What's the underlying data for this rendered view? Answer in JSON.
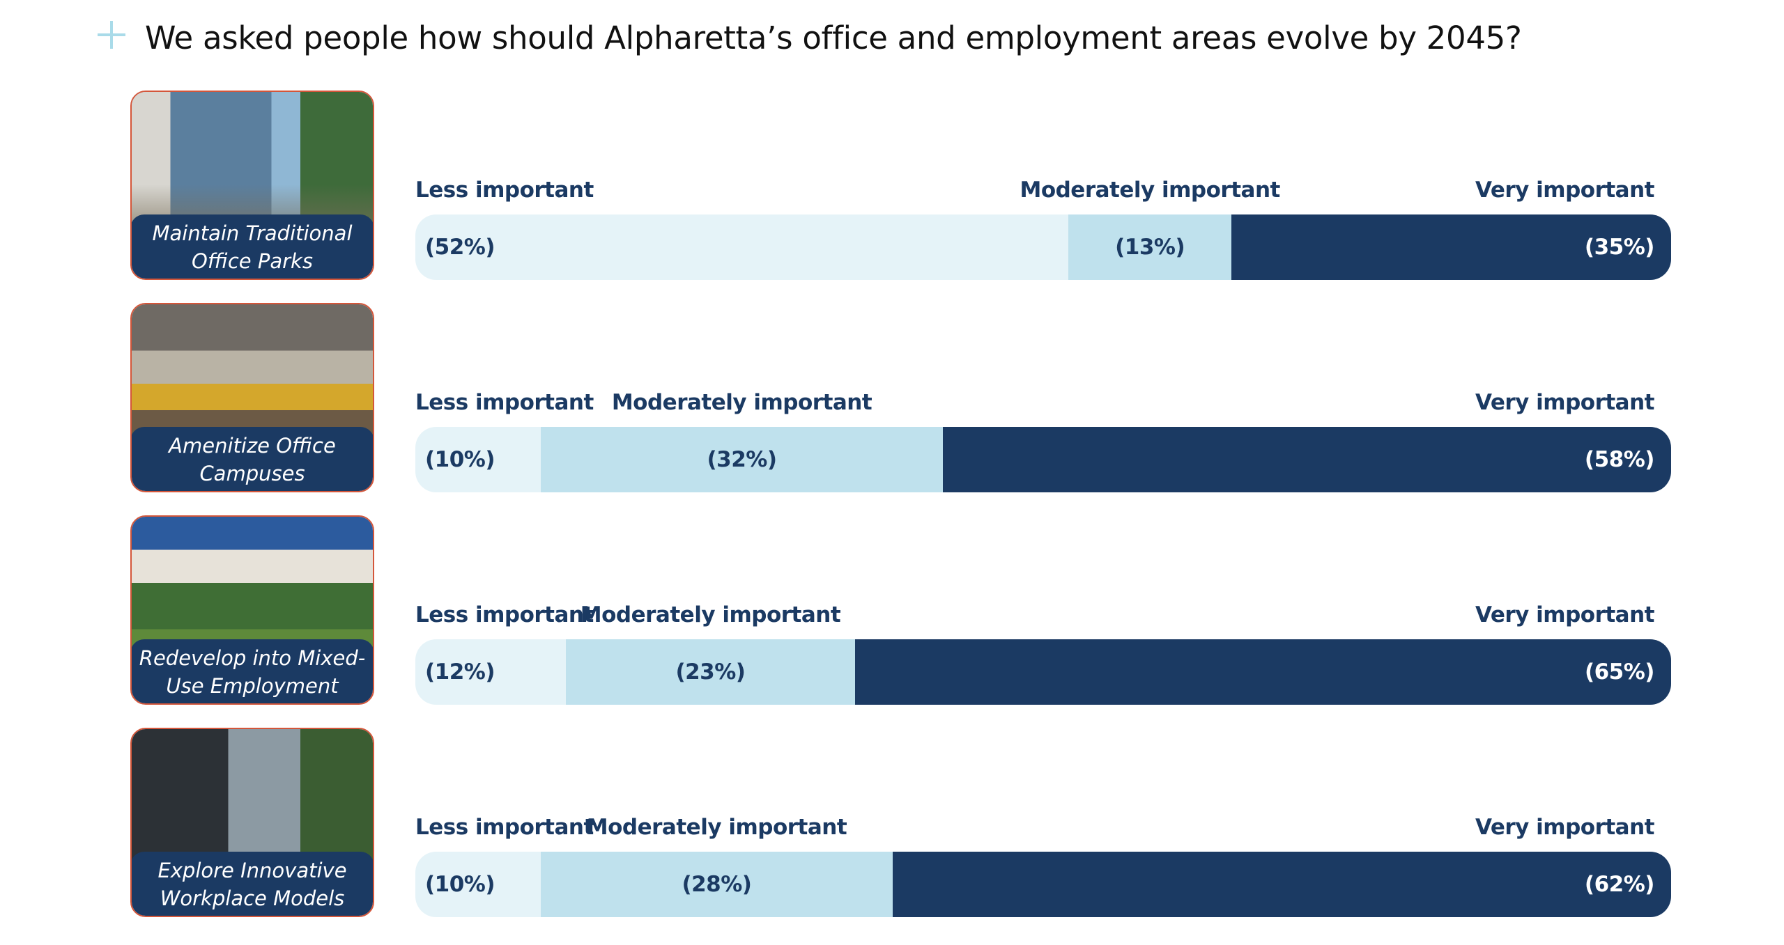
{
  "header": {
    "icon": "plus-icon",
    "title": "We asked people how should Alpharetta’s office and employment areas evolve by 2045?"
  },
  "colors": {
    "less": "#e5f3f8",
    "moderate": "#bfe1ed",
    "very": "#1b3a63",
    "accent_plus": "#a9dbe9",
    "card_border": "#d4563a",
    "caption_bg": "#1b3a63"
  },
  "scale_labels": {
    "less": "Less important",
    "moderate": "Moderately  important",
    "very": "Very important"
  },
  "chart_data": {
    "type": "bar",
    "orientation": "horizontal",
    "stacked": true,
    "title": "We asked people how should Alpharetta’s office and employment areas evolve by 2045?",
    "categories": [
      "Maintain Traditional Office Parks",
      "Amenitize Office Campuses",
      "Redevelop into Mixed-Use Employment",
      "Explore Innovative Workplace Models"
    ],
    "series": [
      {
        "name": "Less important",
        "values": [
          52,
          10,
          12,
          10
        ]
      },
      {
        "name": "Moderately important",
        "values": [
          13,
          32,
          23,
          28
        ]
      },
      {
        "name": "Very important",
        "values": [
          35,
          58,
          65,
          62
        ]
      }
    ],
    "xlim": [
      0,
      100
    ],
    "unit": "%",
    "legend": "above-each-bar",
    "grid": false
  },
  "rows": [
    {
      "image": "office-park-photo",
      "caption_lines": [
        "Maintain Traditional",
        "Office Parks"
      ],
      "less_label": "(52%)",
      "moderate_label": "(13%)",
      "very_label": "(35%)"
    },
    {
      "image": "office-campus-interior-photo",
      "caption_lines": [
        "Amenitize Office",
        "Campuses"
      ],
      "less_label": "(10%)",
      "moderate_label": "(32%)",
      "very_label": "(58%)"
    },
    {
      "image": "mixed-use-development-photo",
      "caption_lines": [
        "Redevelop into Mixed-",
        "Use Employment"
      ],
      "less_label": "(12%)",
      "moderate_label": "(23%)",
      "very_label": "(65%)"
    },
    {
      "image": "innovative-workplace-photo",
      "caption_lines": [
        "Explore Innovative",
        "Workplace Models"
      ],
      "less_label": "(10%)",
      "moderate_label": "(28%)",
      "very_label": "(62%)"
    }
  ]
}
